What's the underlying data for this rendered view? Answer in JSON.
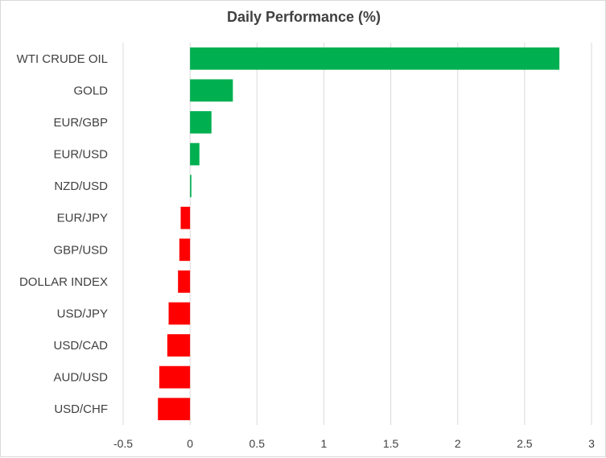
{
  "chart_data": {
    "type": "bar",
    "orientation": "horizontal",
    "title": "Daily Performance (%)",
    "xlabel": "",
    "ylabel": "",
    "categories": [
      "WTI CRUDE OIL",
      "GOLD",
      "EUR/GBP",
      "EUR/USD",
      "NZD/USD",
      "EUR/JPY",
      "GBP/USD",
      "DOLLAR INDEX",
      "USD/JPY",
      "USD/CAD",
      "AUD/USD",
      "USD/CHF"
    ],
    "values": [
      2.76,
      0.32,
      0.16,
      0.07,
      0.01,
      -0.07,
      -0.08,
      -0.09,
      -0.16,
      -0.17,
      -0.23,
      -0.24
    ],
    "xlim": [
      -0.5,
      3
    ],
    "xticks": [
      -0.5,
      0,
      0.5,
      1,
      1.5,
      2,
      2.5,
      3
    ],
    "xtick_labels": [
      "-0.5",
      "0",
      "0.5",
      "1",
      "1.5",
      "2",
      "2.5",
      "3"
    ],
    "grid": true,
    "legend": "none",
    "colors": {
      "positive": "#00b050",
      "negative": "#ff0000",
      "grid": "#d9d9d9",
      "text": "#404040"
    }
  }
}
